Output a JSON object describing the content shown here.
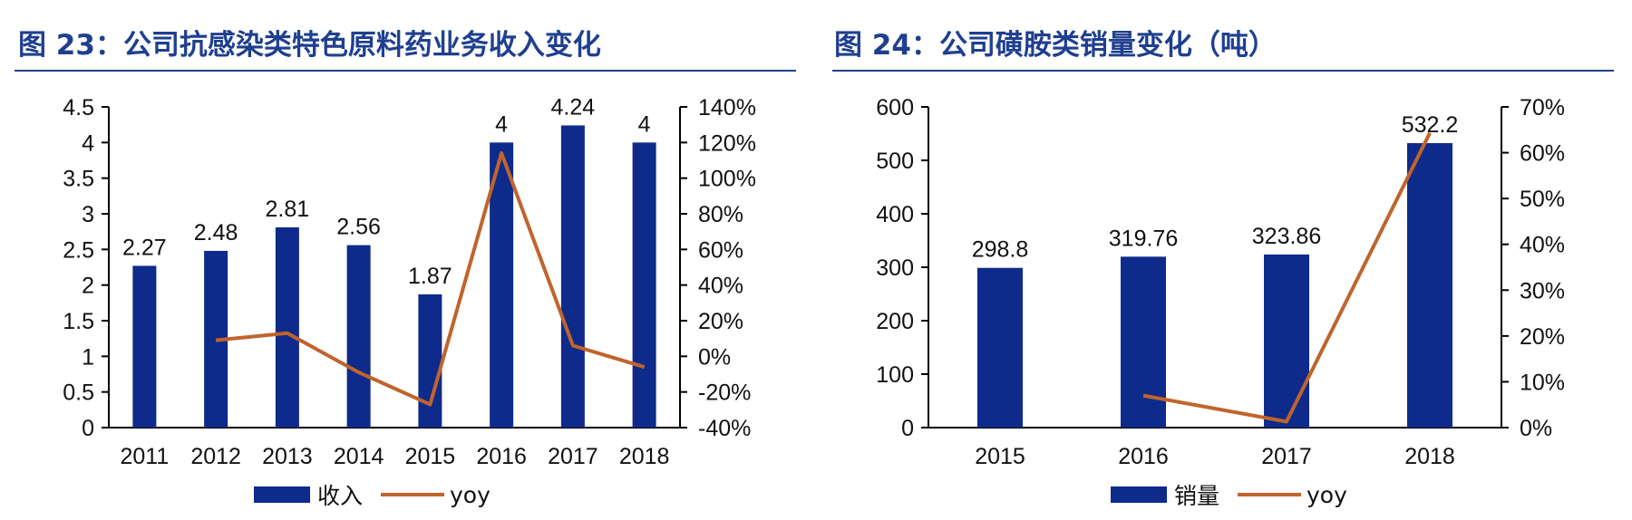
{
  "colors": {
    "bar": "#0e2a8a",
    "line": "#c0642c",
    "title": "#1f3f8f",
    "rule": "#1f3f8f"
  },
  "fig23": {
    "title_prefix": "图",
    "title_num": "23",
    "title_sep": "：",
    "title_text": "公司抗感染类特色原料药业务收入变化",
    "legend_bar": "收入",
    "legend_line": "yoy",
    "chart_data": {
      "type": "bar",
      "categories": [
        "2011",
        "2012",
        "2013",
        "2014",
        "2015",
        "2016",
        "2017",
        "2018"
      ],
      "series": [
        {
          "name": "收入",
          "type": "bar",
          "axis": "left",
          "values": [
            2.27,
            2.48,
            2.81,
            2.56,
            1.87,
            4,
            4.24,
            4
          ],
          "labels": [
            "2.27",
            "2.48",
            "2.81",
            "2.56",
            "1.87",
            "4",
            "4.24",
            "4"
          ]
        },
        {
          "name": "yoy",
          "type": "line",
          "axis": "right",
          "values": [
            null,
            9,
            13,
            -9,
            -27,
            114,
            6,
            -6
          ]
        }
      ],
      "ylim_left": [
        0,
        4.5
      ],
      "yticks_left": [
        "0",
        "0.5",
        "1",
        "1.5",
        "2",
        "2.5",
        "3",
        "3.5",
        "4",
        "4.5"
      ],
      "ylim_right": [
        -40,
        140
      ],
      "yticks_right": [
        "-40%",
        "-20%",
        "0%",
        "20%",
        "40%",
        "60%",
        "80%",
        "100%",
        "120%",
        "140%"
      ],
      "legend_position": "bottom"
    }
  },
  "fig24": {
    "title_prefix": "图",
    "title_num": "24",
    "title_sep": "：",
    "title_text": "公司磺胺类销量变化（吨）",
    "legend_bar": "销量",
    "legend_line": "yoy",
    "chart_data": {
      "type": "bar",
      "categories": [
        "2015",
        "2016",
        "2017",
        "2018"
      ],
      "series": [
        {
          "name": "销量",
          "type": "bar",
          "axis": "left",
          "values": [
            298.8,
            319.76,
            323.86,
            532.2
          ],
          "labels": [
            "298.8",
            "319.76",
            "323.86",
            "532.2"
          ]
        },
        {
          "name": "yoy",
          "type": "line",
          "axis": "right",
          "values": [
            null,
            7,
            1.3,
            64.3
          ]
        }
      ],
      "ylim_left": [
        0,
        600
      ],
      "yticks_left": [
        "0",
        "100",
        "200",
        "300",
        "400",
        "500",
        "600"
      ],
      "ylim_right": [
        0,
        70
      ],
      "yticks_right": [
        "0%",
        "10%",
        "20%",
        "30%",
        "40%",
        "50%",
        "60%",
        "70%"
      ],
      "legend_position": "bottom"
    }
  }
}
